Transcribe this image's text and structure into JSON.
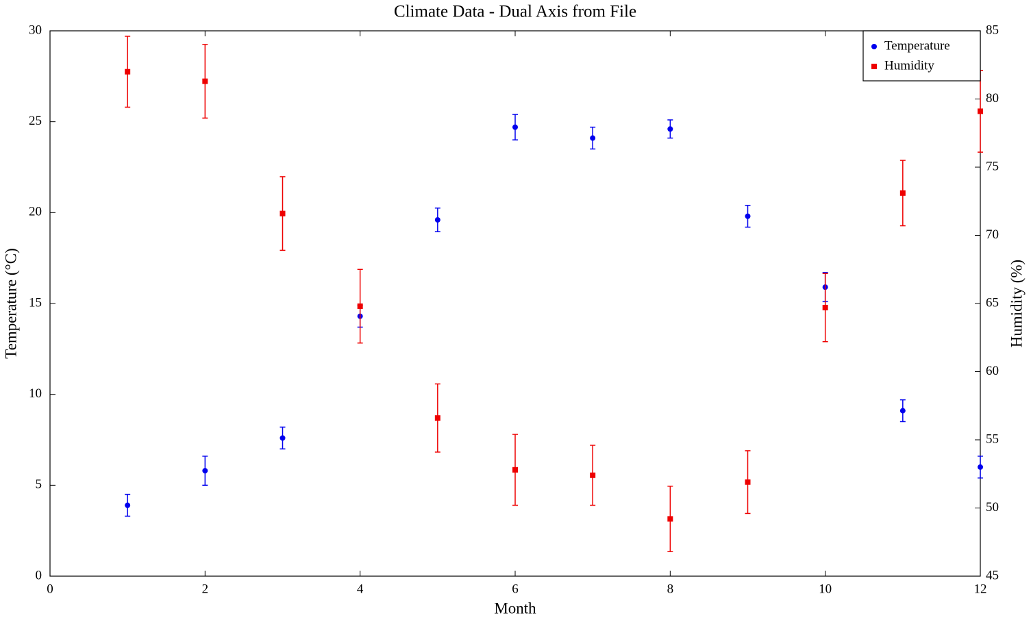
{
  "chart_data": {
    "type": "errorbar",
    "title": "Climate Data - Dual Axis from File",
    "xlabel": "Month",
    "ylabel": "Temperature (°C)",
    "y2label": "Humidity (%)",
    "x": [
      1,
      2,
      3,
      4,
      5,
      6,
      7,
      8,
      9,
      10,
      11,
      12
    ],
    "xlim": [
      0,
      12
    ],
    "xticks": [
      0,
      2,
      4,
      6,
      8,
      10,
      12
    ],
    "ylim": [
      0,
      30
    ],
    "yticks": [
      0,
      5,
      10,
      15,
      20,
      25,
      30
    ],
    "y2lim": [
      45,
      85
    ],
    "y2ticks": [
      45,
      50,
      55,
      60,
      65,
      70,
      75,
      80,
      85
    ],
    "legend": "upper right",
    "series": [
      {
        "name": "Temperature",
        "color": "#0000ee",
        "marker": "circle",
        "axis": "y",
        "values": [
          3.9,
          5.8,
          7.6,
          14.3,
          19.6,
          24.7,
          24.1,
          24.6,
          19.8,
          15.9,
          9.1,
          6.0
        ],
        "errors": [
          0.6,
          0.8,
          0.6,
          0.6,
          0.65,
          0.7,
          0.6,
          0.5,
          0.6,
          0.8,
          0.6,
          0.6
        ]
      },
      {
        "name": "Humidity",
        "color": "#ee0000",
        "marker": "square",
        "axis": "y2",
        "values": [
          82.0,
          81.3,
          71.6,
          64.8,
          56.6,
          52.8,
          52.4,
          49.2,
          51.9,
          64.7,
          73.1,
          79.1
        ],
        "errors": [
          2.6,
          2.7,
          2.7,
          2.7,
          2.5,
          2.6,
          2.2,
          2.4,
          2.3,
          2.5,
          2.4,
          3.0
        ]
      }
    ]
  }
}
